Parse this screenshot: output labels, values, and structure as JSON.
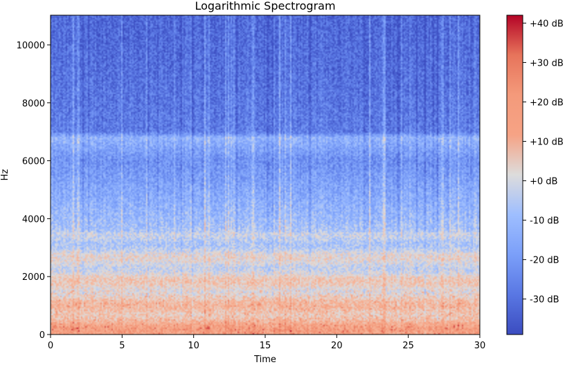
{
  "chart_data": {
    "type": "heatmap",
    "title": "Logarithmic Spectrogram",
    "xlabel": "Time",
    "ylabel": "Hz",
    "xlim": [
      0,
      30
    ],
    "ylim": [
      0,
      11025
    ],
    "x_ticks": [
      {
        "value": 0,
        "label": "0"
      },
      {
        "value": 5,
        "label": "5"
      },
      {
        "value": 10,
        "label": "10"
      },
      {
        "value": 15,
        "label": "15"
      },
      {
        "value": 20,
        "label": "20"
      },
      {
        "value": 25,
        "label": "25"
      },
      {
        "value": 30,
        "label": "30"
      }
    ],
    "y_ticks": [
      {
        "value": 0,
        "label": "0"
      },
      {
        "value": 2000,
        "label": "2000"
      },
      {
        "value": 4000,
        "label": "4000"
      },
      {
        "value": 6000,
        "label": "6000"
      },
      {
        "value": 8000,
        "label": "8000"
      },
      {
        "value": 10000,
        "label": "10000"
      }
    ],
    "colorbar": {
      "colormap": "coolwarm",
      "range_db": [
        -39,
        42
      ],
      "ticks": [
        {
          "value": -30,
          "label": "-30 dB"
        },
        {
          "value": -20,
          "label": "-20 dB"
        },
        {
          "value": -10,
          "label": "-10 dB"
        },
        {
          "value": 0,
          "label": "+0 dB"
        },
        {
          "value": 10,
          "label": "+10 dB"
        },
        {
          "value": 20,
          "label": "+20 dB"
        },
        {
          "value": 30,
          "label": "+30 dB"
        },
        {
          "value": 40,
          "label": "+40 dB"
        }
      ]
    },
    "approx_level_profile_db": [
      {
        "hz": 0,
        "db": 18
      },
      {
        "hz": 500,
        "db": 12
      },
      {
        "hz": 1000,
        "db": 8
      },
      {
        "hz": 2000,
        "db": 3
      },
      {
        "hz": 3000,
        "db": -2
      },
      {
        "hz": 4000,
        "db": -10
      },
      {
        "hz": 5000,
        "db": -16
      },
      {
        "hz": 6000,
        "db": -22
      },
      {
        "hz": 6800,
        "db": -12
      },
      {
        "hz": 7000,
        "db": -27
      },
      {
        "hz": 9000,
        "db": -30
      },
      {
        "hz": 11025,
        "db": -32
      }
    ],
    "grid": false,
    "legend": "colorbar-right"
  }
}
